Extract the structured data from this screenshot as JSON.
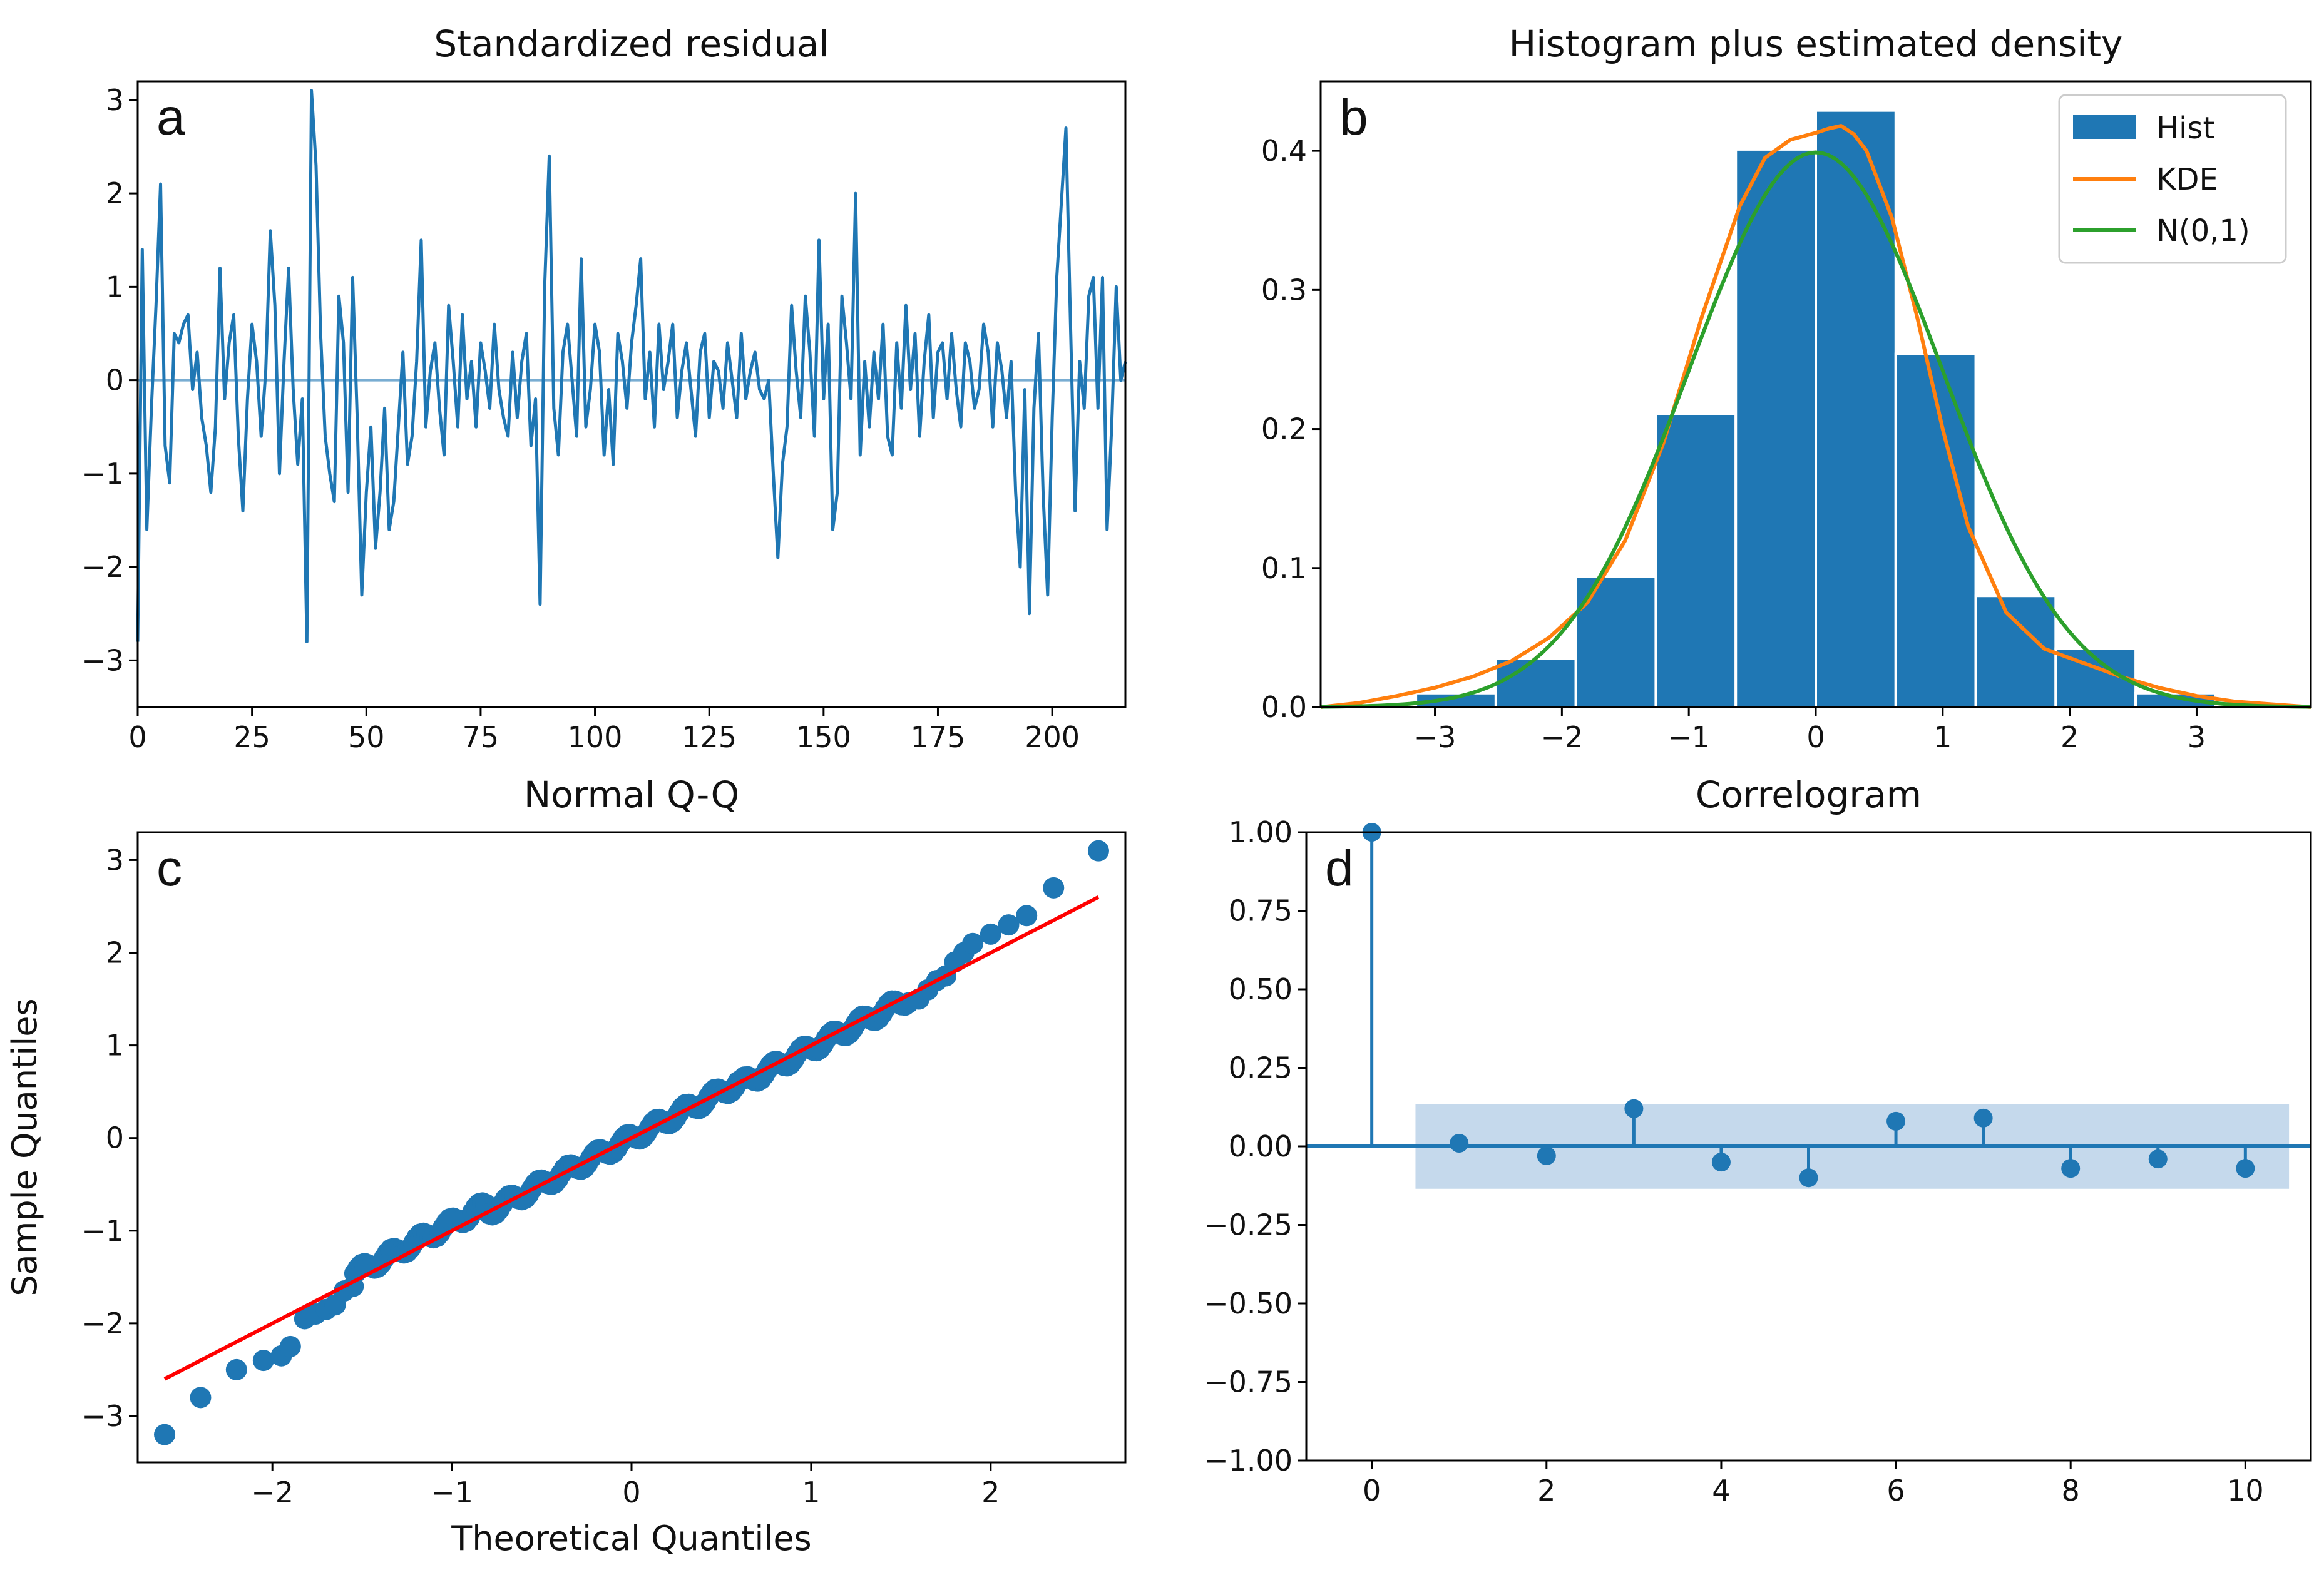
{
  "colors": {
    "blue": "#1f77b4",
    "orange": "#ff7f0e",
    "green": "#2ca02c",
    "red": "#ff0000",
    "band": "#c5d9ec"
  },
  "chart_data": [
    {
      "type": "line",
      "panel": "a",
      "title": "Standardized residual",
      "xlabel": "",
      "ylabel": "",
      "xlim": [
        0,
        216
      ],
      "ylim": [
        -3.5,
        3.2
      ],
      "xticks": [
        0,
        25,
        50,
        75,
        100,
        125,
        150,
        175,
        200
      ],
      "xtick_labels": [
        "0",
        "25",
        "50",
        "75",
        "100",
        "125",
        "150",
        "175",
        "200"
      ],
      "yticks": [
        -3,
        -2,
        -1,
        0,
        1,
        2,
        3
      ],
      "ytick_labels": [
        "−3",
        "−2",
        "−1",
        "0",
        "1",
        "2",
        "3"
      ],
      "reference_line": 0,
      "series": [
        {
          "values": [
            -2.8,
            1.4,
            -1.6,
            -0.3,
            0.8,
            2.1,
            -0.7,
            -1.1,
            0.5,
            0.4,
            0.6,
            0.7,
            -0.1,
            0.3,
            -0.4,
            -0.7,
            -1.2,
            -0.5,
            1.2,
            -0.2,
            0.4,
            0.7,
            -0.6,
            -1.4,
            -0.2,
            0.6,
            0.2,
            -0.6,
            0.1,
            1.6,
            0.8,
            -1.0,
            0.2,
            1.2,
            -0.1,
            -0.9,
            -0.2,
            -2.8,
            3.1,
            2.3,
            0.5,
            -0.6,
            -1.0,
            -1.3,
            0.9,
            0.4,
            -1.2,
            1.1,
            -0.4,
            -2.3,
            -1.2,
            -0.5,
            -1.8,
            -1.2,
            -0.3,
            -1.6,
            -1.3,
            -0.5,
            0.3,
            -0.9,
            -0.6,
            0.2,
            1.5,
            -0.5,
            0.1,
            0.4,
            -0.3,
            -0.8,
            0.8,
            0.2,
            -0.5,
            0.7,
            -0.2,
            0.2,
            -0.5,
            0.4,
            0.1,
            -0.3,
            0.6,
            -0.1,
            -0.4,
            -0.6,
            0.3,
            -0.4,
            0.2,
            0.5,
            -0.7,
            -0.2,
            -2.4,
            1.0,
            2.4,
            -0.3,
            -0.8,
            0.3,
            0.6,
            0.0,
            -0.6,
            1.3,
            -0.5,
            -0.1,
            0.6,
            0.3,
            -0.8,
            -0.1,
            -0.9,
            0.5,
            0.2,
            -0.3,
            0.4,
            0.8,
            1.3,
            -0.2,
            0.3,
            -0.5,
            0.6,
            -0.1,
            0.2,
            0.6,
            -0.4,
            0.1,
            0.4,
            -0.1,
            -0.6,
            0.3,
            0.5,
            -0.4,
            0.2,
            0.1,
            -0.3,
            0.4,
            0.0,
            -0.4,
            0.5,
            -0.2,
            0.1,
            0.3,
            -0.1,
            -0.2,
            0.0,
            -1.0,
            -1.9,
            -0.9,
            -0.5,
            0.8,
            0.1,
            -0.4,
            0.9,
            0.3,
            -0.6,
            1.5,
            -0.2,
            0.6,
            -1.6,
            -1.2,
            0.9,
            0.4,
            -0.2,
            2.0,
            -0.8,
            0.2,
            -0.5,
            0.3,
            -0.2,
            0.6,
            -0.6,
            -0.8,
            0.4,
            -0.3,
            0.8,
            -0.1,
            0.5,
            -0.6,
            0.2,
            0.7,
            -0.4,
            0.3,
            0.4,
            -0.2,
            0.5,
            -0.1,
            -0.5,
            0.4,
            0.2,
            -0.3,
            -0.1,
            0.6,
            0.3,
            -0.5,
            0.4,
            0.1,
            -0.4,
            0.2,
            -1.2,
            -2.0,
            -0.1,
            -2.5,
            -0.3,
            0.5,
            -1.2,
            -2.3,
            -0.4,
            1.1,
            1.9,
            2.7,
            0.6,
            -1.4,
            0.2,
            -0.3,
            0.9,
            1.1,
            -0.3,
            1.1,
            -1.6,
            -0.5,
            1.0,
            0.0,
            0.2
          ]
        }
      ]
    },
    {
      "type": "bar",
      "panel": "b",
      "title": "Histogram plus estimated density",
      "xlim": [
        -3.9,
        3.9
      ],
      "ylim": [
        0,
        0.45
      ],
      "xticks": [
        -3,
        -2,
        -1,
        0,
        1,
        2,
        3
      ],
      "xtick_labels": [
        "−3",
        "−2",
        "−1",
        "0",
        "1",
        "2",
        "3"
      ],
      "yticks": [
        0.0,
        0.1,
        0.2,
        0.3,
        0.4
      ],
      "ytick_labels": [
        "0.0",
        "0.1",
        "0.2",
        "0.3",
        "0.4"
      ],
      "legend": {
        "placement": "top-right",
        "entries": [
          "Hist",
          "KDE",
          "N(0,1)"
        ]
      },
      "bins": {
        "edges": [
          -3.15,
          -2.52,
          -1.89,
          -1.26,
          -0.63,
          0.0,
          0.63,
          1.26,
          1.89,
          2.52,
          3.15
        ],
        "values": [
          0.01,
          0.035,
          0.094,
          0.211,
          0.401,
          0.429,
          0.254,
          0.08,
          0.042,
          0.01
        ]
      },
      "kde": {
        "x": [
          -3.9,
          -3.6,
          -3.3,
          -3.0,
          -2.7,
          -2.4,
          -2.1,
          -1.8,
          -1.5,
          -1.2,
          -0.9,
          -0.6,
          -0.4,
          -0.2,
          0.0,
          0.1,
          0.2,
          0.3,
          0.4,
          0.6,
          0.8,
          1.0,
          1.2,
          1.5,
          1.8,
          2.1,
          2.4,
          2.7,
          3.0,
          3.3,
          3.6,
          3.9
        ],
        "y": [
          0.0,
          0.003,
          0.008,
          0.014,
          0.022,
          0.033,
          0.05,
          0.075,
          0.12,
          0.19,
          0.28,
          0.36,
          0.395,
          0.408,
          0.413,
          0.416,
          0.418,
          0.412,
          0.4,
          0.352,
          0.28,
          0.2,
          0.13,
          0.068,
          0.042,
          0.032,
          0.022,
          0.014,
          0.008,
          0.004,
          0.002,
          0.0
        ]
      },
      "normal": {
        "mean": 0,
        "sd": 1
      }
    },
    {
      "type": "scatter",
      "panel": "c",
      "title": "Normal Q-Q",
      "xlabel": "Theoretical Quantiles",
      "ylabel": "Sample Quantiles",
      "xlim": [
        -2.75,
        2.75
      ],
      "ylim": [
        -3.5,
        3.3
      ],
      "xticks": [
        -2,
        -1,
        0,
        1,
        2
      ],
      "xtick_labels": [
        "−2",
        "−1",
        "0",
        "1",
        "2"
      ],
      "yticks": [
        -3,
        -2,
        -1,
        0,
        1,
        2,
        3
      ],
      "ytick_labels": [
        "−3",
        "−2",
        "−1",
        "0",
        "1",
        "2",
        "3"
      ],
      "fit_line": {
        "x": [
          -2.6,
          2.6
        ],
        "y": [
          -2.6,
          2.6
        ]
      },
      "n_points": 216,
      "outer_points": {
        "x": [
          -2.6,
          -2.4,
          -2.2,
          -2.05,
          -1.95,
          -1.9,
          -1.82,
          -1.76,
          -1.7,
          -1.65,
          -1.6,
          -1.55,
          1.6,
          1.65,
          1.7,
          1.75,
          1.8,
          1.85,
          1.9,
          2.0,
          2.1,
          2.2,
          2.35,
          2.6
        ],
        "y": [
          -3.2,
          -2.8,
          -2.5,
          -2.4,
          -2.35,
          -2.25,
          -1.95,
          -1.9,
          -1.85,
          -1.8,
          -1.65,
          -1.6,
          1.5,
          1.6,
          1.7,
          1.75,
          1.9,
          2.0,
          2.1,
          2.2,
          2.3,
          2.4,
          2.7,
          3.1
        ]
      }
    },
    {
      "type": "bar",
      "subtype": "stem",
      "panel": "d",
      "title": "Correlogram",
      "xlim": [
        -0.75,
        10.75
      ],
      "ylim": [
        -1.0,
        1.0
      ],
      "xticks": [
        0,
        2,
        4,
        6,
        8,
        10
      ],
      "xtick_labels": [
        "0",
        "2",
        "4",
        "6",
        "8",
        "10"
      ],
      "yticks": [
        -1.0,
        -0.75,
        -0.5,
        -0.25,
        0.0,
        0.25,
        0.5,
        0.75,
        1.0
      ],
      "ytick_labels": [
        "−1.00",
        "−0.75",
        "−0.50",
        "−0.25",
        "0.00",
        "0.25",
        "0.50",
        "0.75",
        "1.00"
      ],
      "lags": [
        0,
        1,
        2,
        3,
        4,
        5,
        6,
        7,
        8,
        9,
        10
      ],
      "values": [
        1.0,
        0.01,
        -0.03,
        0.12,
        -0.05,
        -0.1,
        0.08,
        0.09,
        -0.07,
        -0.04,
        -0.07
      ],
      "confidence_band": {
        "from_lag": 0.5,
        "to_lag": 10.5,
        "bound": 0.135
      }
    }
  ],
  "panels": {
    "a": {
      "letter": "a"
    },
    "b": {
      "letter": "b"
    },
    "c": {
      "letter": "c"
    },
    "d": {
      "letter": "d"
    }
  }
}
